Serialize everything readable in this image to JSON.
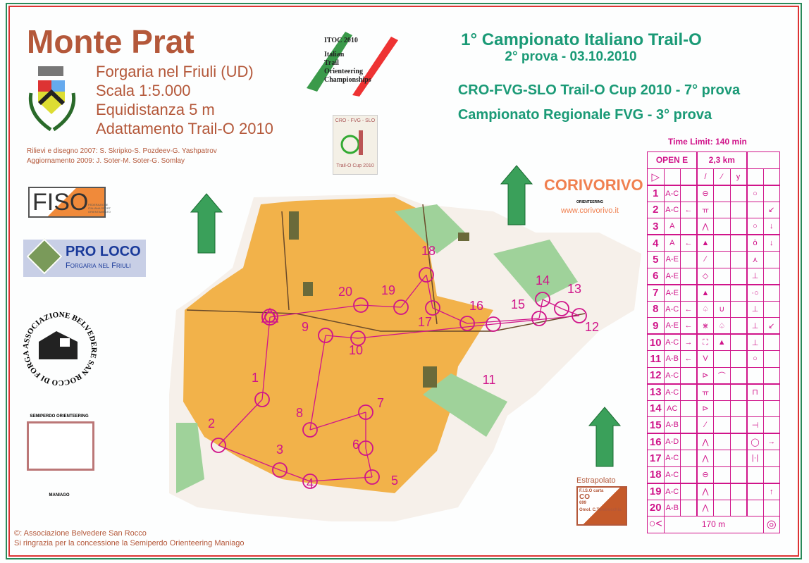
{
  "header": {
    "title": "Monte Prat",
    "lines": [
      "Forgaria nel Friuli (UD)",
      "Scala  1:5.000",
      "Equidistanza  5 m",
      "Adattamento Trail-O 2010"
    ],
    "credits": [
      "Rilievi e disegno 2007: S. Skripko-S. Pozdeev-G. Yashpatrov",
      "Aggiornamento 2009: J. Soter-M. Soter-G. Somlay"
    ]
  },
  "event": {
    "line1": "1° Campionato Italiano Trail-O",
    "line2": "2° prova - 03.10.2010",
    "line3": "CRO-FVG-SLO Trail-O Cup 2010 - 7° prova",
    "line4": "Campionato Regionale FVG - 3° prova"
  },
  "logos": {
    "itoc": [
      "ITOC 2010",
      "Italian",
      "Trail",
      "Orienteering",
      "Championships"
    ],
    "cup": [
      "CRO - FVG - SLO",
      "Trail-O Cup 2010"
    ],
    "fiso": [
      "FISO",
      "FEDERAZIONE ITALIANA SPORT ORIENTAMENTO"
    ],
    "proloco": [
      "PRO LOCO",
      "Forgaria nel Friuli"
    ],
    "belvedere": "ASSOCIAZIONE BELVEDERE SAN ROCCO DI FORGARIA",
    "semiperdo": [
      "SEMIPERDO ORIENTEERING",
      "MANIAGO"
    ],
    "corivorivo": [
      "CORIVORIVO",
      "ORIENTEERING",
      "www.corivorivo.it"
    ],
    "estrapolato": [
      "Estrapolato",
      "F.I.S.O carta",
      "CO",
      "699",
      "Omol. C.Tarabocchia"
    ]
  },
  "footer": [
    "©: Associazione Belvedere San Rocco",
    "Si ringrazia per la concessione la Semiperdo Orienteering Maniago"
  ],
  "colors": {
    "course": "#d0148a",
    "title": "#b4583a",
    "event": "#1a9a76",
    "open": "#f2b24a",
    "forest": "#ffffff",
    "green": "#9fd29a"
  },
  "descriptions": {
    "time_limit": "Time Limit: 140 min",
    "class": "OPEN E",
    "length": "2,3 km",
    "finish": "170 m",
    "rows": [
      [
        "1",
        "A-C",
        "",
        "⊖",
        "",
        "",
        "○",
        ""
      ],
      [
        "2",
        "A-C",
        "←",
        "ㅠ",
        "",
        "",
        "",
        "↙"
      ],
      [
        "3",
        "A",
        "",
        "⋀",
        "",
        "",
        "○",
        "↓"
      ],
      [
        "4",
        "A",
        "←",
        "▲",
        "",
        "",
        "ō",
        "↓"
      ],
      [
        "5",
        "A-E",
        "",
        "⁄",
        "",
        "",
        "⋏",
        ""
      ],
      [
        "6",
        "A-E",
        "",
        "◇",
        "",
        "",
        "⊥",
        ""
      ],
      [
        "7",
        "A-E",
        "",
        "▲",
        "",
        "",
        "·○",
        ""
      ],
      [
        "8",
        "A-C",
        "←",
        "♤",
        "∪",
        "",
        "⊥",
        ""
      ],
      [
        "9",
        "A-E",
        "←",
        "⋇",
        "♤",
        "",
        "⊥",
        "↙"
      ],
      [
        "10",
        "A-C",
        "→",
        "⛶",
        "▲",
        "",
        "⊥",
        ""
      ],
      [
        "11",
        "A-B",
        "←",
        "V",
        "",
        "",
        "○",
        ""
      ],
      [
        "12",
        "A-C",
        "",
        "⊳",
        "⌒",
        "",
        "",
        ""
      ],
      [
        "13",
        "A-C",
        "",
        "ㅠ",
        "",
        "",
        "⊓",
        ""
      ],
      [
        "14",
        "AC",
        "",
        "⊳",
        "",
        "",
        "",
        ""
      ],
      [
        "15",
        "A-B",
        "",
        "⁄",
        "",
        "",
        "⊣",
        ""
      ],
      [
        "16",
        "A-D",
        "",
        "⋀",
        "",
        "",
        "◯",
        "→"
      ],
      [
        "17",
        "A-C",
        "",
        "⋀",
        "",
        "",
        "|·|",
        ""
      ],
      [
        "18",
        "A-C",
        "",
        "⊖",
        "",
        "",
        "",
        ""
      ],
      [
        "19",
        "A-C",
        "",
        "⋀",
        "",
        "",
        "",
        "↑"
      ],
      [
        "20",
        "A-B",
        "",
        "⋀",
        "",
        "",
        "",
        ""
      ]
    ]
  },
  "controls": [
    "1",
    "2",
    "3",
    "4",
    "5",
    "6",
    "7",
    "8",
    "9",
    "10",
    "11",
    "12",
    "13",
    "14",
    "15",
    "16",
    "17",
    "18",
    "19",
    "20"
  ]
}
